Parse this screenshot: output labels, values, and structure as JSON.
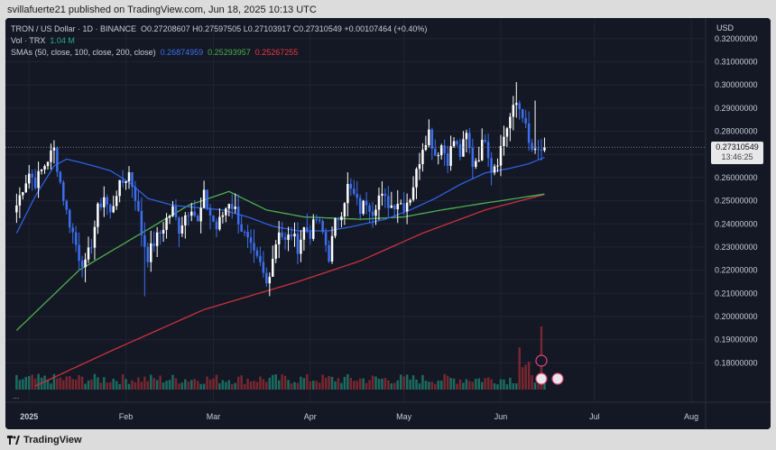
{
  "header": {
    "published_line": "svillafuerte21 published on TradingView.com, Jun 18, 2025 10:13 UTC"
  },
  "legend": {
    "symbol": "TRON / US Dollar · 1D · BINANCE",
    "open": "O0.27208607",
    "high": "H0.27597505",
    "low": "L0.27103917",
    "close": "C0.27310549",
    "change": "+0.00107464 (+0.40%)",
    "vol_label": "Vol · TRX",
    "vol_value": "1.04 M",
    "sma_label": "SMAs (50, close, 100, close, 200, close)",
    "sma50": "0.26874959",
    "sma100": "0.25293957",
    "sma200": "0.25267255"
  },
  "currency": "USD",
  "last_price": "0.27310549",
  "countdown": "13:46:25",
  "more_indicator": "...",
  "footer": {
    "brand": "TradingView"
  },
  "colors": {
    "up": "#ffffff",
    "down": "#3c6ff0",
    "sma50": "#2f5fe0",
    "sma100": "#4caf50",
    "sma200": "#c8323e",
    "vol_up": "#1f7a6b",
    "vol_down": "#8a2a32",
    "background": "#141824"
  },
  "chart_data": {
    "type": "candlestick",
    "interval": "1D",
    "ylim": [
      0.17,
      0.325
    ],
    "y_ticks": [
      "0.32000000",
      "0.31000000",
      "0.30000000",
      "0.29000000",
      "0.28000000",
      "0.27000000",
      "0.26000000",
      "0.25000000",
      "0.24000000",
      "0.23000000",
      "0.22000000",
      "0.21000000",
      "0.20000000",
      "0.19000000",
      "0.18000000"
    ],
    "y_tick_values": [
      0.32,
      0.31,
      0.3,
      0.29,
      0.28,
      0.27,
      0.26,
      0.25,
      0.24,
      0.23,
      0.22,
      0.21,
      0.2,
      0.19,
      0.18
    ],
    "x_labels": [
      {
        "label": "2025",
        "day": 4
      },
      {
        "label": "Feb",
        "day": 35
      },
      {
        "label": "Mar",
        "day": 63
      },
      {
        "label": "Apr",
        "day": 94
      },
      {
        "label": "May",
        "day": 124
      },
      {
        "label": "Jun",
        "day": 155
      },
      {
        "label": "Jul",
        "day": 185
      },
      {
        "label": "Aug",
        "day": 216
      }
    ],
    "x_range": [
      -3,
      220
    ],
    "close_anchors": [
      [
        0,
        0.248
      ],
      [
        2,
        0.256
      ],
      [
        4,
        0.262
      ],
      [
        6,
        0.258
      ],
      [
        8,
        0.263
      ],
      [
        10,
        0.268
      ],
      [
        12,
        0.272
      ],
      [
        14,
        0.258
      ],
      [
        16,
        0.245
      ],
      [
        18,
        0.236
      ],
      [
        20,
        0.226
      ],
      [
        22,
        0.222
      ],
      [
        24,
        0.232
      ],
      [
        26,
        0.246
      ],
      [
        28,
        0.252
      ],
      [
        30,
        0.244
      ],
      [
        32,
        0.254
      ],
      [
        34,
        0.258
      ],
      [
        36,
        0.262
      ],
      [
        38,
        0.252
      ],
      [
        40,
        0.236
      ],
      [
        42,
        0.226
      ],
      [
        44,
        0.232
      ],
      [
        46,
        0.236
      ],
      [
        48,
        0.242
      ],
      [
        50,
        0.246
      ],
      [
        52,
        0.238
      ],
      [
        54,
        0.244
      ],
      [
        56,
        0.248
      ],
      [
        58,
        0.24
      ],
      [
        60,
        0.252
      ],
      [
        62,
        0.244
      ],
      [
        64,
        0.238
      ],
      [
        66,
        0.244
      ],
      [
        68,
        0.25
      ],
      [
        70,
        0.246
      ],
      [
        72,
        0.238
      ],
      [
        74,
        0.232
      ],
      [
        76,
        0.226
      ],
      [
        78,
        0.222
      ],
      [
        80,
        0.214
      ],
      [
        82,
        0.226
      ],
      [
        84,
        0.238
      ],
      [
        86,
        0.232
      ],
      [
        88,
        0.236
      ],
      [
        90,
        0.23
      ],
      [
        92,
        0.238
      ],
      [
        94,
        0.236
      ],
      [
        96,
        0.242
      ],
      [
        98,
        0.236
      ],
      [
        100,
        0.226
      ],
      [
        102,
        0.24
      ],
      [
        104,
        0.246
      ],
      [
        106,
        0.256
      ],
      [
        108,
        0.252
      ],
      [
        110,
        0.246
      ],
      [
        112,
        0.25
      ],
      [
        114,
        0.246
      ],
      [
        116,
        0.252
      ],
      [
        118,
        0.25
      ],
      [
        120,
        0.248
      ],
      [
        122,
        0.25
      ],
      [
        124,
        0.248
      ],
      [
        126,
        0.252
      ],
      [
        128,
        0.262
      ],
      [
        130,
        0.274
      ],
      [
        132,
        0.28
      ],
      [
        134,
        0.27
      ],
      [
        136,
        0.274
      ],
      [
        138,
        0.268
      ],
      [
        140,
        0.276
      ],
      [
        142,
        0.27
      ],
      [
        144,
        0.278
      ],
      [
        146,
        0.266
      ],
      [
        148,
        0.27
      ],
      [
        150,
        0.278
      ],
      [
        152,
        0.264
      ],
      [
        154,
        0.268
      ],
      [
        156,
        0.278
      ],
      [
        158,
        0.286
      ],
      [
        160,
        0.292
      ],
      [
        162,
        0.288
      ],
      [
        164,
        0.274
      ],
      [
        166,
        0.27
      ],
      [
        168,
        0.272
      ],
      [
        169,
        0.2731
      ]
    ],
    "sma_anchors": {
      "sma50": [
        [
          0,
          0.236
        ],
        [
          6,
          0.252
        ],
        [
          12,
          0.265
        ],
        [
          16,
          0.268
        ],
        [
          22,
          0.266
        ],
        [
          30,
          0.263
        ],
        [
          36,
          0.258
        ],
        [
          42,
          0.251
        ],
        [
          50,
          0.248
        ],
        [
          58,
          0.247
        ],
        [
          66,
          0.246
        ],
        [
          74,
          0.243
        ],
        [
          82,
          0.239
        ],
        [
          90,
          0.237
        ],
        [
          100,
          0.237
        ],
        [
          108,
          0.239
        ],
        [
          118,
          0.242
        ],
        [
          126,
          0.246
        ],
        [
          134,
          0.251
        ],
        [
          142,
          0.257
        ],
        [
          150,
          0.262
        ],
        [
          158,
          0.264
        ],
        [
          164,
          0.266
        ],
        [
          169,
          0.2687
        ]
      ],
      "sma100": [
        [
          0,
          0.194
        ],
        [
          20,
          0.22
        ],
        [
          40,
          0.236
        ],
        [
          55,
          0.248
        ],
        [
          68,
          0.254
        ],
        [
          80,
          0.246
        ],
        [
          92,
          0.243
        ],
        [
          110,
          0.242
        ],
        [
          124,
          0.243
        ],
        [
          136,
          0.246
        ],
        [
          150,
          0.249
        ],
        [
          160,
          0.251
        ],
        [
          169,
          0.2529
        ]
      ],
      "sma200": [
        [
          6,
          0.17
        ],
        [
          30,
          0.185
        ],
        [
          60,
          0.203
        ],
        [
          90,
          0.215
        ],
        [
          110,
          0.224
        ],
        [
          130,
          0.236
        ],
        [
          150,
          0.246
        ],
        [
          169,
          0.2527
        ]
      ]
    },
    "volume_note": "volume bars scaled by max; last bar spike"
  }
}
